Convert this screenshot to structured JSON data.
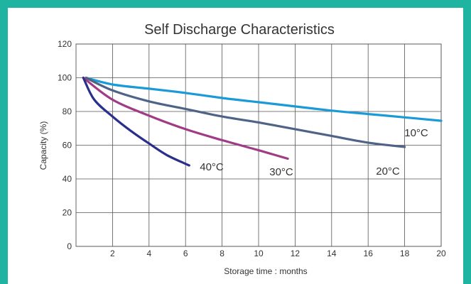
{
  "chart_data": {
    "type": "line",
    "title": "Self Discharge Characteristics",
    "xlabel": "Storage time : months",
    "ylabel": "Capacity (%)",
    "xlim": [
      0,
      20
    ],
    "ylim": [
      0,
      120
    ],
    "x_ticks": [
      2,
      4,
      6,
      8,
      10,
      12,
      14,
      16,
      18,
      20
    ],
    "y_ticks": [
      0,
      20,
      40,
      60,
      80,
      100,
      120
    ],
    "grid": true,
    "series": [
      {
        "name": "10°C",
        "color": "#1a9ad6",
        "x": [
          0,
          2,
          4,
          6,
          8,
          10,
          12,
          14,
          16,
          18,
          20
        ],
        "y": [
          100,
          96,
          93.5,
          91,
          88,
          85.5,
          83,
          80.5,
          78.5,
          76.5,
          74.5
        ]
      },
      {
        "name": "20°C",
        "color": "#4e6386",
        "x": [
          0,
          2,
          4,
          6,
          8,
          10,
          12,
          14,
          16,
          18
        ],
        "y": [
          100,
          92.5,
          86,
          81.5,
          77,
          73.5,
          69.5,
          65.5,
          61.5,
          59
        ]
      },
      {
        "name": "30°C",
        "color": "#a03c86",
        "x": [
          0,
          2,
          4,
          6,
          8,
          10,
          11.6
        ],
        "y": [
          100,
          87,
          77.5,
          69.5,
          63,
          57,
          52
        ]
      },
      {
        "name": "40°C",
        "color": "#2a2f8c",
        "x": [
          0,
          1,
          2,
          3,
          4,
          5,
          6.2
        ],
        "y": [
          100,
          87,
          77,
          68.5,
          61,
          54,
          48
        ]
      }
    ]
  }
}
